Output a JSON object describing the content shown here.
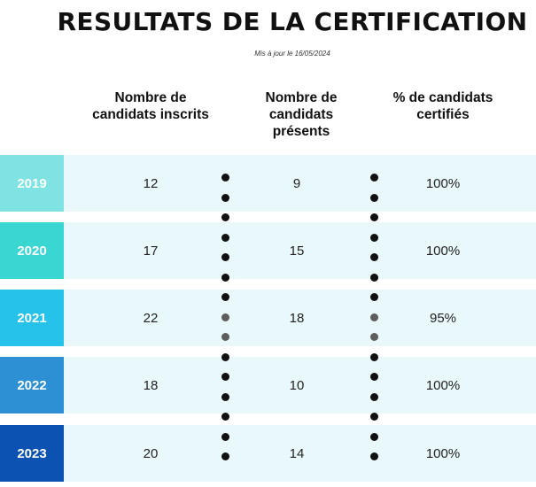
{
  "title": "RESULTATS DE LA CERTIFICATION",
  "updated": "Mis à jour le 16/05/2024",
  "headers": {
    "inscrits": "Nombre de candidats inscrits",
    "presents": "Nombre de candidats présents",
    "certifies": "% de candidats certifiés"
  },
  "rows": [
    {
      "year": "2019",
      "inscrits": "12",
      "presents": "9",
      "certifies": "100%",
      "color": "#7fe3e3"
    },
    {
      "year": "2020",
      "inscrits": "17",
      "presents": "15",
      "certifies": "100%",
      "color": "#3ad6d2"
    },
    {
      "year": "2021",
      "inscrits": "22",
      "presents": "18",
      "certifies": "95%",
      "color": "#27c2ea"
    },
    {
      "year": "2022",
      "inscrits": "18",
      "presents": "10",
      "certifies": "100%",
      "color": "#2e90d4"
    },
    {
      "year": "2023",
      "inscrits": "20",
      "presents": "14",
      "certifies": "100%",
      "color": "#0b52b2"
    }
  ],
  "colors": {
    "row_background": "#e8f8fb",
    "dot": "#111111"
  }
}
